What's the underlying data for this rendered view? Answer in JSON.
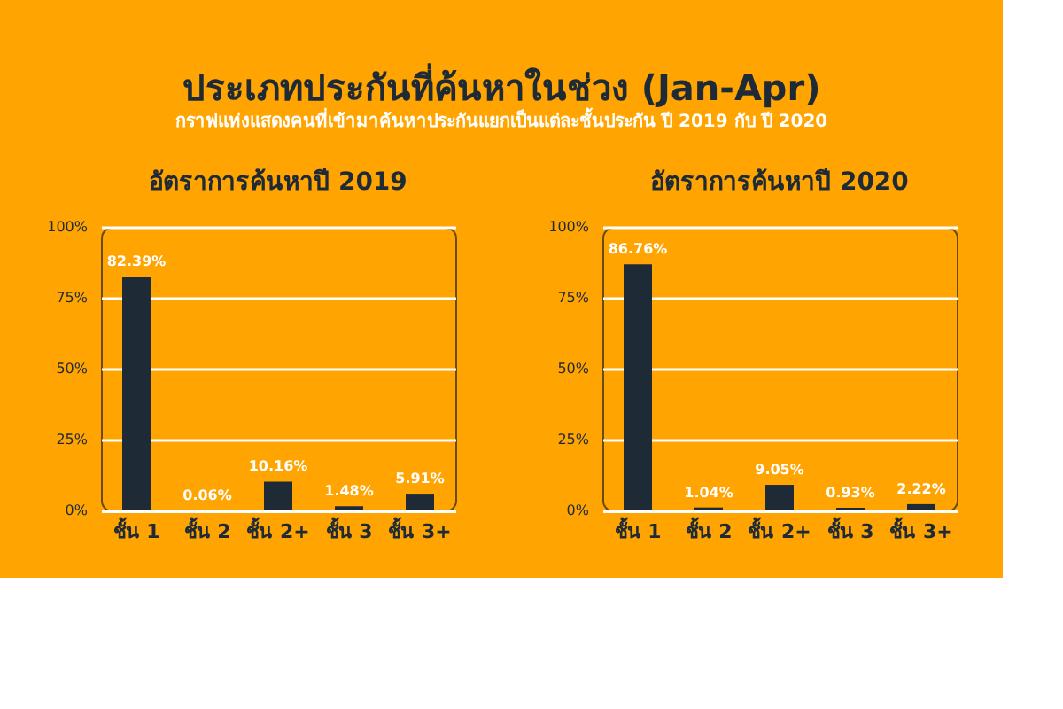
{
  "chart_data": [
    {
      "type": "other",
      "title": "ประเภทประกันที่ค้นหาในช่วง (Jan-Apr)",
      "subtitle": "กราฟแท่งแสดงคนที่เข้ามาค้นหาประกันแยกเป็นแต่ละชั้นประกัน ปี 2019 กับ ปี 2020"
    },
    {
      "type": "bar",
      "title": "อัตราการค้นหาปี 2019",
      "categories": [
        "ชั้น 1",
        "ชั้น 2",
        "ชั้น 2+",
        "ชั้น 3",
        "ชั้น 3+"
      ],
      "values": [
        82.39,
        0.06,
        10.16,
        1.48,
        5.91
      ],
      "value_labels": [
        "82.39%",
        "0.06%",
        "10.16%",
        "1.48%",
        "5.91%"
      ],
      "color": "#1e2a36",
      "ylim": [
        0,
        100
      ],
      "yticks": [
        {
          "value": 0,
          "label": "0%"
        },
        {
          "value": 25,
          "label": "25%"
        },
        {
          "value": 50,
          "label": "50%"
        },
        {
          "value": 75,
          "label": "75%"
        },
        {
          "value": 100,
          "label": "100%"
        }
      ],
      "grid": "y"
    },
    {
      "type": "bar",
      "title": "อัตราการค้นหาปี 2020",
      "categories": [
        "ชั้น 1",
        "ชั้น 2",
        "ชั้น 2+",
        "ชั้น 3",
        "ชั้น 3+"
      ],
      "values": [
        86.76,
        1.04,
        9.05,
        0.93,
        2.22
      ],
      "value_labels": [
        "86.76%",
        "1.04%",
        "9.05%",
        "0.93%",
        "2.22%"
      ],
      "color": "#1e2a36",
      "ylim": [
        0,
        100
      ],
      "yticks": [
        {
          "value": 0,
          "label": "0%"
        },
        {
          "value": 25,
          "label": "25%"
        },
        {
          "value": 50,
          "label": "50%"
        },
        {
          "value": 75,
          "label": "75%"
        },
        {
          "value": 100,
          "label": "100%"
        }
      ],
      "grid": "y"
    }
  ]
}
